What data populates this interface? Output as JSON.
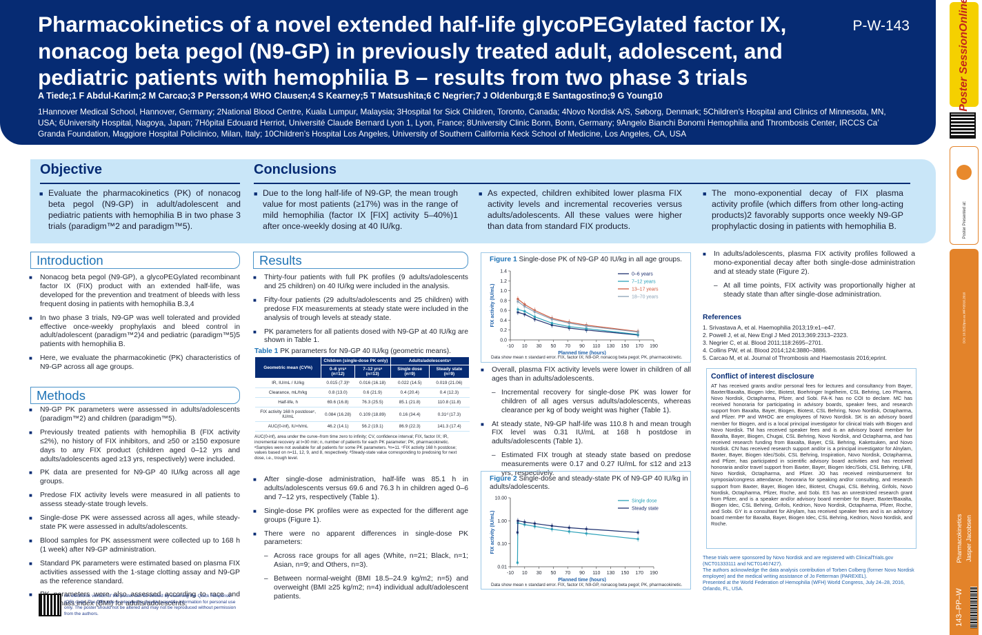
{
  "title": "Pharmacokinetics of a novel extended half-life glycoPEGylated factor IX, nonacog beta pegol (N9-GP) in previously treated adult, adolescent, and pediatric patients with hemophilia B – results from two phase 3 trials",
  "poster_id": "P-W-143",
  "authors": "A Tiede;1 F Abdul-Karim;2 M Carcao;3 P Persson;4 WHO Clausen;4 S Kearney;5 T Matsushita;6 C Negrier;7 J Oldenburg;8 E Santagostino;9 G Young10",
  "affiliations": "1Hannover Medical School, Hannover, Germany; 2National Blood Centre, Kuala Lumpur, Malaysia; 3Hospital for Sick Children, Toronto, Canada; 4Novo Nordisk A/S, Søborg, Denmark; 5Children’s Hospital and Clinics of Minnesota, MN, USA; 6University Hospital, Nagoya, Japan; 7Hôpital Edouard Herriot, Université Claude Bernard Lyon 1, Lyon, France; 8University Clinic Bonn, Bonn, Germany; 9Angelo Bianchi Bonomi Hemophilia and Thrombosis Center, IRCCS Ca’ Granda Foundation, Maggiore Hospital Policlinico, Milan, Italy; 10Children’s Hospital Los Angeles, University of Southern California Keck School of Medicine, Los Angeles, CA, USA",
  "objective": {
    "heading": "Objective",
    "text": "Evaluate the pharmacokinetics (PK) of nonacog beta pegol (N9-GP) in adult/adolescent and pediatric patients with hemophilia B in two phase 3 trials (paradigm™2 and paradigm™5)."
  },
  "conclusions": {
    "heading": "Conclusions",
    "items": [
      "Due to the long half-life of N9-GP, the mean trough value for most patients (≥17%) was in the range of mild hemophilia (factor IX [FIX] activity 5–40%)1 after once-weekly dosing at 40 IU/kg.",
      "As expected, children exhibited lower plasma FIX activity levels and incremental recoveries versus adults/adolescents. All these values were higher than data from standard FIX products.",
      "The mono-exponential decay of FIX plasma activity profile (which differs from other long-acting products)2 favorably supports once weekly N9-GP prophylactic dosing in patients with hemophilia B."
    ]
  },
  "introduction": {
    "heading": "Introduction",
    "items": [
      "Nonacog beta pegol (N9-GP), a glycoPEGylated recombinant factor IX (FIX) product with an extended half-life, was developed for the prevention and treatment of bleeds with less frequent dosing in patients with hemophilia B.3,4",
      "In two phase 3 trials, N9-GP was well tolerated and provided effective once-weekly prophylaxis and bleed control in adult/adolescent (paradigm™2)4 and pediatric (paradigm™5)5 patients with hemophilia B.",
      "Here, we evaluate the pharmacokinetic (PK) characteristics of N9-GP across all age groups."
    ]
  },
  "methods": {
    "heading": "Methods",
    "items": [
      "N9-GP PK parameters were assessed in adults/adolescents (paradigm™2) and children (paradigm™5).",
      "Previously treated patients with hemophilia B (FIX activity ≤2%), no history of FIX inhibitors, and ≥50 or ≥150 exposure days to any FIX product (children aged 0–12 yrs and adults/adolescents aged ≥13 yrs, respectively) were included.",
      "PK data are presented for N9-GP 40 IU/kg across all age groups.",
      "Predose FIX activity levels were measured in all patients to assess steady-state trough levels.",
      "Single-dose PK were assessed across all ages, while steady-state PK were assessed in adults/adolescents.",
      "Blood samples for PK assessment were collected up to 168 h (1 week) after N9-GP administration.",
      "Standard PK parameters were estimated based on plasma FIX activities assessed with the 1-stage clotting assay and N9-GP as the reference standard.",
      "PK parameters were also assessed according to race and body mass index (BMI) for adults/adolescents."
    ],
    "qr_note": "An electronic version of the poster can be viewed by scanning the Quick Response (QR) code. The QR code is intended to provide scientific information for personal use only. The poster should not be altered and may not be reproduced without permission from the authors."
  },
  "results": {
    "heading": "Results",
    "items": [
      "Thirty-four patients with full PK profiles (9 adults/adolescents and 25 children) on 40 IU/kg were included in the analysis.",
      "Fifty-four patients (29 adults/adolescents and 25 children) with predose FIX measurements at steady state were included in the analysis of trough levels at steady state.",
      "PK parameters for all patients dosed with N9-GP at 40 IU/kg are shown in Table 1."
    ],
    "items2": [
      "After single-dose administration, half-life was 85.1 h in adults/adolescents versus 69.6 and 76.3 h in children aged 0–6 and 7–12 yrs, respectively (Table 1).",
      "Single-dose PK profiles were as expected for the different age groups (Figure 1).",
      "There were no apparent differences in single-dose PK parameters:"
    ],
    "sub2": [
      "Across race groups for all ages (White, n=21; Black, n=1; Asian, n=9; and Others, n=3).",
      "Between normal-weight (BMI 18.5–24.9 kg/m2; n=5) and overweight (BMI ≥25 kg/m2; n=4) individual adult/adolescent patients."
    ]
  },
  "table1": {
    "caption_bold": "Table 1",
    "caption": "PK parameters for N9-GP 40 IU/kg (geometric means).",
    "group_children": "Children (single-dose PK only)",
    "group_adults": "Adults/adolescentsᵃ",
    "col0": "Geometric mean (CV%)",
    "cols": [
      "0–6 yrsᵃ (n=12)",
      "7–12 yrsᵃ (n=13)",
      "Single dose (n=9)",
      "Steady state (n=9)"
    ],
    "rows": [
      [
        "IR, IU/mL / IU/kg",
        "0.015 (7.3)ᵇ",
        "0.016 (16.18)",
        "0.022 (14.5)",
        "0.019 (21.06)"
      ],
      [
        "Clearance, mL/h/kg",
        "0.8 (13.0)",
        "0.6 (21.9)",
        "0.4 (20.4)",
        "0.4 (12.3)"
      ],
      [
        "Half-life, h",
        "69.6 (16.8)",
        "76.3 (25.5)",
        "85.1 (21.8)",
        "110.8 (11.8)"
      ],
      [
        "FIX activity 168 h postdoseᶜ, IU/mL",
        "0.084 (16.28)",
        "0.109 (18.89)",
        "0.16 (34.4)",
        "0.31ᵈ (17.3)"
      ],
      [
        "AUC(0-inf), IU×h/mL",
        "46.2 (14.1)",
        "56.2 (19.1)",
        "86.9 (22.3)",
        "141.3 (17.4)"
      ]
    ],
    "note": "AUC(0-inf), area under the curve–from time zero to infinity; CV, confidence interval; FIX, factor IX; IR, incremental recovery at t=30 min; n, number of patients for each PK parameter; PK, pharmacokinetic. ᵃSamples were not available for all patients for some PK parameters. ᵇn=11. ᶜFIX activity 168 h postdose; values based on n=11, 12, 9, and 8, respectively. ᵈSteady-state value corresponding to predosing for next dose, i.e., trough level."
  },
  "figure1": {
    "caption_bold": "Figure 1",
    "caption": "Single-dose PK of N9-GP 40 IU/kg in all age groups.",
    "note": "Data show mean ± standard error. FIX, factor IX; N9-GP, nonacog beta pegol; PK, pharmacokinetic."
  },
  "figure2": {
    "caption_bold": "Figure 2",
    "caption": "Single-dose and steady-state PK of N9-GP 40 IU/kg in adults/adolescents.",
    "note": "Data show mean ± standard error. FIX, factor IX; N9-GP, nonacog beta pegol; PK, pharmacokinetic."
  },
  "col4": {
    "items": [
      "Overall, plasma FIX activity levels were lower in children of all ages than in adults/adolescents.",
      "At steady state, N9-GP half-life was 110.8 h and mean trough FIX level was 0.31 IU/mL at 168 h postdose in adults/adolescents (Table 1)."
    ],
    "sub_a": "Incremental recovery for single-dose PK was lower for children of all ages versus adults/adolescents, whereas clearance per kg of body weight was higher (Table 1).",
    "sub_b": "Estimated FIX trough at steady state based on predose measurements were 0.17 and 0.27 IU/mL for ≤12 and ≥13 yrs, respectively."
  },
  "col5": {
    "item": "In adults/adolescents, plasma FIX activity profiles followed a mono-exponential decay after both single-dose administration and at steady state (Figure 2).",
    "sub": "At all time points, FIX activity was proportionally higher at steady state than after single-dose administration."
  },
  "references": {
    "heading": "References",
    "items": [
      "1. Srivastava A, et al. Haemophilia 2013;19:e1–e47.",
      "2. Powell J, et al, New Engl J Med 2013;369:2313–2323.",
      "3. Negrier C, et al. Blood 2011;118:2695–2701.",
      "4. Collins PW, et al. Blood 2014;124:3880–3886.",
      "5. Carcao M, et al. Journal of Thrombosis and Haemostasis 2016;eprint."
    ]
  },
  "coi": {
    "heading": "Conflict of interest disclosure",
    "text": "AT has received grants and/or personal fees for lectures and consultancy from Bayer, Baxter/Baxalta, Biogen Idec, Biotest, Boehringer Ingelheim, CSL Behring, Leo Pharma, Novo Nordisk, Octapharma, Pfizer, and Sobi. FA-K has no COI to declare. MC has received honoraria for participating in advisory boards, speaker fees, and research support from Baxalta, Bayer, Biogen, Biotest, CSL Behring, Novo Nordisk, Octapharma, and Pfizer. PP and WHOC are employees of Novo Nordisk. SK is an advisory board member for Biogen, and is a local principal investigator for clinical trials with Biogen and Novo Nordisk. TM has received speaker fees and is an advisory board member for Baxalta, Bayer, Biogen, Chugai, CSL Behring, Novo Nordisk, and Octapharma, and has received research funding from Baxalta, Bayer, CSL Behring, Kaketsuken, and Novo Nordisk. CN has received research support and/or is a principal investigator for Alnylam, Baxter, Bayer, Biogen Idec/Sobi, CSL Behring, Inspiration, Novo Nordisk, Octapharma, and Pfizer, has participated in scientific advisory board activities and has received honoraria and/or travel support from Baxter, Bayer, Biogen Idec/Sobi, CSL Behring, LFB, Novo Nordisk, Octapharma, and Pfizer. JO has received reimbursement for symposia/congress attendance, honoraria for speaking and/or consulting, and research support from Baxter, Bayer, Biogen Idec, Biotest, Chugai, CSL Behring, Grifols, Novo Nordisk, Octapharma, Pfizer, Roche, and Sobi. ES has an unrestricted research grant from Pfizer, and is a speaker and/or advisory board member for Bayer, Baxter/Baxalta, Biogen Idec, CSL Behring, Grifols, Kedrion, Novo Nordisk, Octapharma, Pfizer, Roche, and Sobi. GY is a consultant for Alnylam, has received speaker fees and is an advisory board member for Baxalta, Bayer, Biogen Idec, CSL Behring, Kedrion, Novo Nordisk, and Roche."
  },
  "footer": {
    "text": "These trials were sponsored by Novo Nordisk and are registered with ClinicalTrials.gov (NCT01333111 and NCT01467427).\nThe authors acknowledge the data analysis contribution of Torben Colberg (former Novo Nordisk employee) and the medical writing assistance of Jo Fetterman (PAREXEL).\nPresented at the World Federation of Hemophilia (WFH) World Congress, July 24–28, 2016, Orlando, FL, USA."
  },
  "sidebar": {
    "brand": "Poster SessionOnline",
    "presented": "Poster Presented at:",
    "topic": "Pharmacokinetics",
    "author": "Jasper Jacobsen",
    "code": "143–PP–W",
    "doi": "DOI: 10.3252/pso.eu.WFH2016.2016"
  },
  "chart_data": [
    {
      "type": "line",
      "title": "Figure 1 Single-dose PK of N9-GP 40 IU/kg in all age groups.",
      "xlabel": "Planned time (hours)",
      "ylabel": "FIX activity (IU/mL)",
      "xlim": [
        -10,
        190
      ],
      "ylim": [
        0,
        1.4
      ],
      "xticks": [
        -10,
        10,
        30,
        50,
        70,
        90,
        110,
        130,
        150,
        170,
        190
      ],
      "yticks": [
        0.0,
        0.2,
        0.4,
        0.6,
        0.8,
        1.0,
        1.2,
        1.4
      ],
      "legend": "top-right",
      "series": [
        {
          "name": "0–6 years",
          "color": "#1c2f6e",
          "x": [
            0.5,
            10,
            24,
            48,
            72,
            96,
            168
          ],
          "y": [
            0.56,
            0.52,
            0.42,
            0.3,
            0.24,
            0.2,
            0.1
          ]
        },
        {
          "name": "7–12 years",
          "color": "#2aa0b8",
          "x": [
            0.5,
            10,
            24,
            48,
            72,
            96,
            168
          ],
          "y": [
            0.62,
            0.58,
            0.47,
            0.34,
            0.27,
            0.23,
            0.11
          ]
        },
        {
          "name": "13–17 years",
          "color": "#d0573a",
          "x": [
            0.5,
            10,
            24,
            48,
            72,
            96,
            168
          ],
          "y": [
            0.83,
            0.72,
            0.6,
            0.44,
            0.36,
            0.3,
            0.17
          ]
        },
        {
          "name": "18–70 years",
          "color": "#8aa0b5",
          "x": [
            0.5,
            10,
            24,
            48,
            72,
            96,
            168
          ],
          "y": [
            0.78,
            0.68,
            0.57,
            0.42,
            0.34,
            0.28,
            0.16
          ]
        }
      ]
    },
    {
      "type": "line",
      "title": "Figure 2 Single-dose and steady-state PK of N9-GP 40 IU/kg in adults/adolescents.",
      "xlabel": "Planned time (hours)",
      "ylabel": "FIX activity (IU/mL)",
      "yscale": "log",
      "xlim": [
        -10,
        190
      ],
      "ylim": [
        0.01,
        10
      ],
      "xticks": [
        -10,
        10,
        30,
        50,
        70,
        90,
        110,
        130,
        150,
        170,
        190
      ],
      "yticks": [
        0.01,
        0.1,
        1.0,
        10.0
      ],
      "yticklabels": [
        "0.01",
        "0.10",
        "1.00",
        "10.00"
      ],
      "legend": "top-right",
      "series": [
        {
          "name": "Single dose",
          "color": "#2aa0b8",
          "x": [
            0,
            0.5,
            10,
            24,
            48,
            72,
            96,
            168
          ],
          "y": [
            0.015,
            0.8,
            0.68,
            0.57,
            0.43,
            0.34,
            0.28,
            0.16
          ]
        },
        {
          "name": "Steady state",
          "color": "#1c2f6e",
          "x": [
            0,
            0.5,
            10,
            24,
            48,
            72,
            96,
            168
          ],
          "y": [
            0.31,
            1.0,
            0.88,
            0.76,
            0.6,
            0.5,
            0.44,
            0.31
          ]
        }
      ]
    }
  ]
}
